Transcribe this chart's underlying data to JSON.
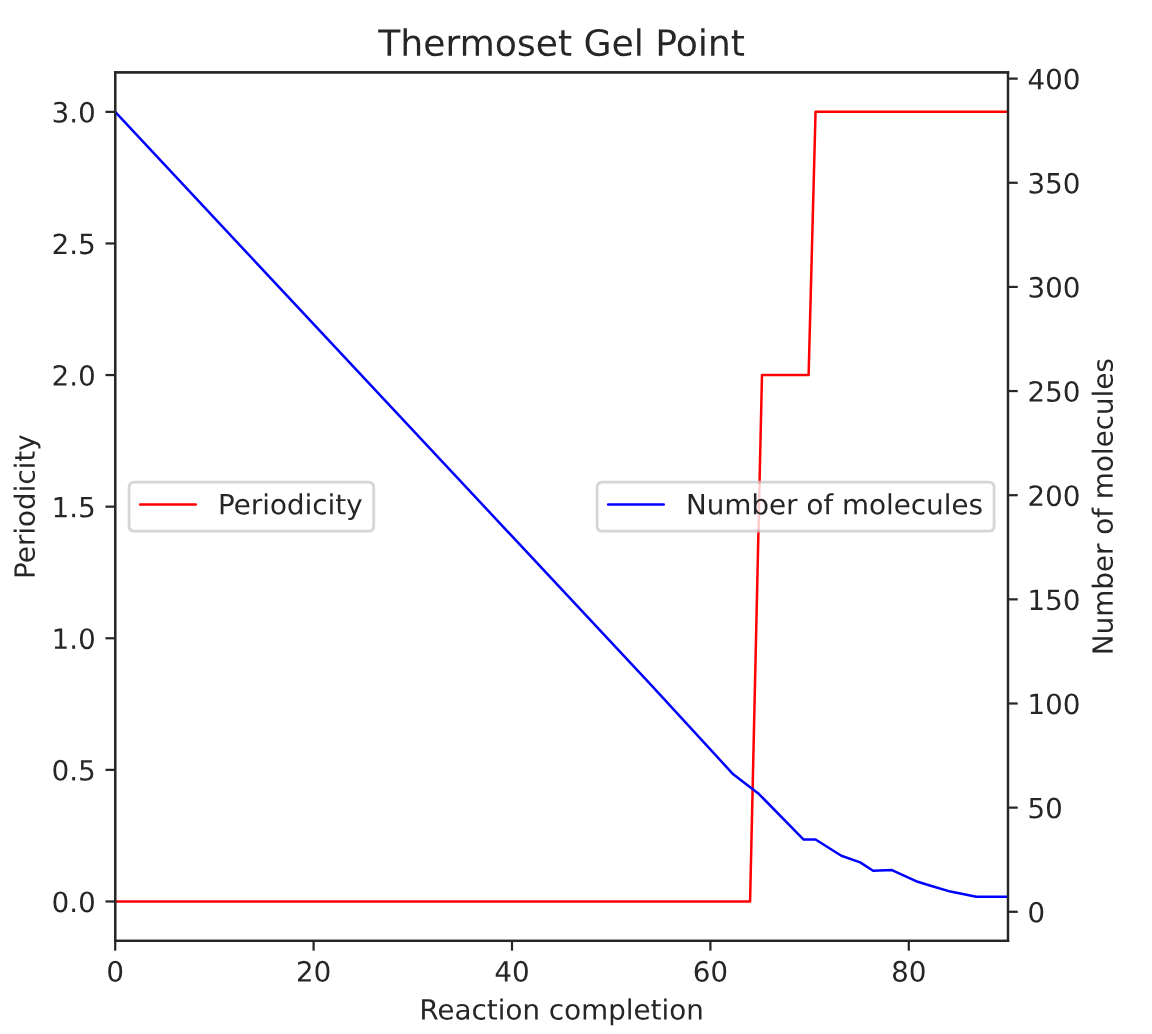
{
  "chart_data": {
    "type": "line",
    "title": "Thermoset Gel Point",
    "xlabel": "Reaction completion",
    "ylabel": "Periodicity",
    "y2label": "Number of molecules",
    "xlim": [
      0,
      90
    ],
    "xticks": [
      0,
      20,
      40,
      60,
      80
    ],
    "ylim": [
      -0.15,
      3.15
    ],
    "yticks": [
      {
        "value": 0,
        "label": "0.0"
      },
      {
        "value": 0.5,
        "label": "0.5"
      },
      {
        "value": 1,
        "label": "1.0"
      },
      {
        "value": 1.5,
        "label": "1.5"
      },
      {
        "value": 2,
        "label": "2.0"
      },
      {
        "value": 2.5,
        "label": "2.5"
      },
      {
        "value": 3,
        "label": "3.0"
      }
    ],
    "y2lim": [
      -14,
      403
    ],
    "y2ticks": [
      0,
      50,
      100,
      150,
      200,
      250,
      300,
      350,
      400
    ],
    "legend": "center",
    "grid": false,
    "series": [
      {
        "name": "Periodicity",
        "color": "#ff0000",
        "x": [
          0,
          64,
          65.2,
          69.9,
          70.6,
          90
        ],
        "values": [
          0,
          0,
          2,
          2,
          3,
          3
        ]
      },
      {
        "name": "Number of molecules",
        "color": "#0000ff",
        "axis": "y2",
        "x": [
          0,
          54.2,
          62.3,
          64.9,
          69.4,
          70.6,
          73.2,
          75.1,
          76.4,
          78.3,
          80.9,
          82.2,
          84.2,
          86.8,
          90
        ],
        "values": [
          384,
          108,
          66,
          56.5,
          34.7,
          34.7,
          26.9,
          23.7,
          19.7,
          20,
          14.4,
          12.5,
          9.7,
          7.2,
          7.2
        ]
      }
    ]
  }
}
